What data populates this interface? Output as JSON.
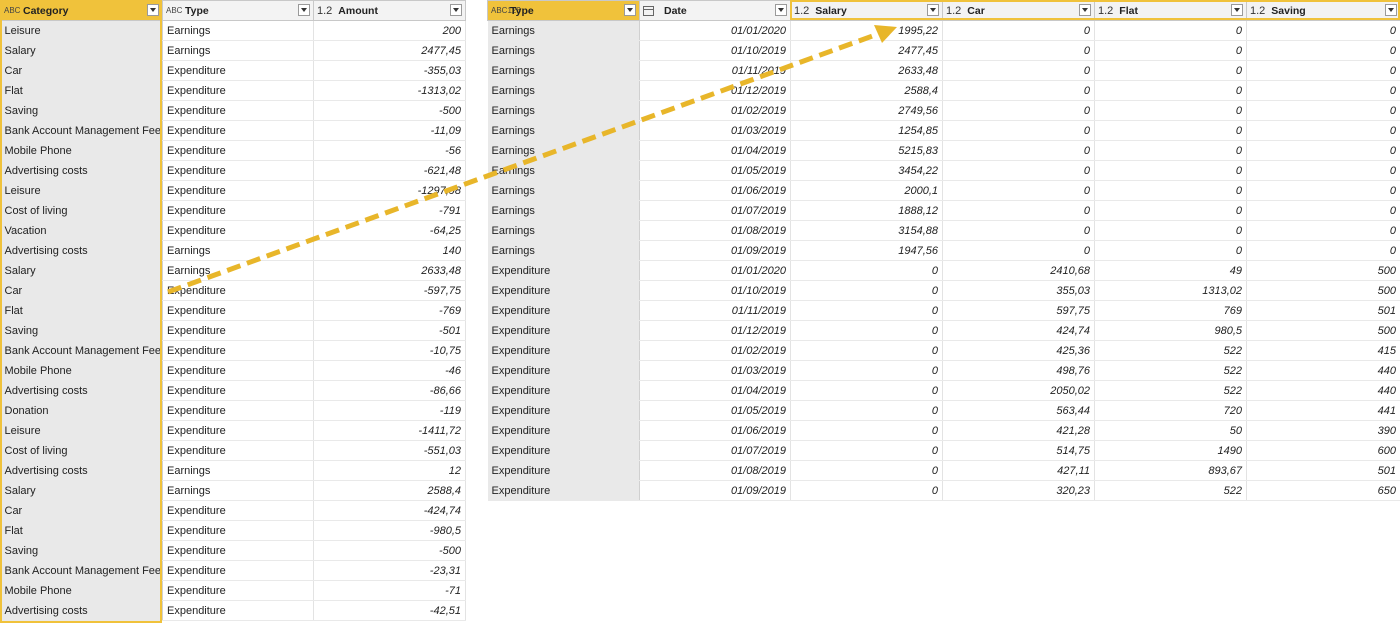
{
  "left_table": {
    "headers": [
      {
        "icon": "ABC",
        "label": "Category"
      },
      {
        "icon": "ABC",
        "label": "Type"
      },
      {
        "icon": "1.2",
        "label": "Amount"
      }
    ],
    "rows": [
      [
        "Leisure",
        "Earnings",
        "200"
      ],
      [
        "Salary",
        "Earnings",
        "2477,45"
      ],
      [
        "Car",
        "Expenditure",
        "-355,03"
      ],
      [
        "Flat",
        "Expenditure",
        "-1313,02"
      ],
      [
        "Saving",
        "Expenditure",
        "-500"
      ],
      [
        "Bank Account Management Fee",
        "Expenditure",
        "-11,09"
      ],
      [
        "Mobile Phone",
        "Expenditure",
        "-56"
      ],
      [
        "Advertising costs",
        "Expenditure",
        "-621,48"
      ],
      [
        "Leisure",
        "Expenditure",
        "-1297,98"
      ],
      [
        "Cost of living",
        "Expenditure",
        "-791"
      ],
      [
        "Vacation",
        "Expenditure",
        "-64,25"
      ],
      [
        "Advertising costs",
        "Earnings",
        "140"
      ],
      [
        "Salary",
        "Earnings",
        "2633,48"
      ],
      [
        "Car",
        "Expenditure",
        "-597,75"
      ],
      [
        "Flat",
        "Expenditure",
        "-769"
      ],
      [
        "Saving",
        "Expenditure",
        "-501"
      ],
      [
        "Bank Account Management Fee",
        "Expenditure",
        "-10,75"
      ],
      [
        "Mobile Phone",
        "Expenditure",
        "-46"
      ],
      [
        "Advertising costs",
        "Expenditure",
        "-86,66"
      ],
      [
        "Donation",
        "Expenditure",
        "-119"
      ],
      [
        "Leisure",
        "Expenditure",
        "-1411,72"
      ],
      [
        "Cost of living",
        "Expenditure",
        "-551,03"
      ],
      [
        "Advertising costs",
        "Earnings",
        "12"
      ],
      [
        "Salary",
        "Earnings",
        "2588,4"
      ],
      [
        "Car",
        "Expenditure",
        "-424,74"
      ],
      [
        "Flat",
        "Expenditure",
        "-980,5"
      ],
      [
        "Saving",
        "Expenditure",
        "-500"
      ],
      [
        "Bank Account Management Fee",
        "Expenditure",
        "-23,31"
      ],
      [
        "Mobile Phone",
        "Expenditure",
        "-71"
      ],
      [
        "Advertising costs",
        "Expenditure",
        "-42,51"
      ]
    ]
  },
  "right_table": {
    "headers": [
      {
        "icon": "ABC123",
        "label": "Type"
      },
      {
        "icon": "calendar-icon",
        "label": "Date"
      },
      {
        "icon": "1.2",
        "label": "Salary"
      },
      {
        "icon": "1.2",
        "label": "Car"
      },
      {
        "icon": "1.2",
        "label": "Flat"
      },
      {
        "icon": "1.2",
        "label": "Saving"
      }
    ],
    "rows": [
      [
        "Earnings",
        "01/01/2020",
        "1995,22",
        "0",
        "0",
        "0"
      ],
      [
        "Earnings",
        "01/10/2019",
        "2477,45",
        "0",
        "0",
        "0"
      ],
      [
        "Earnings",
        "01/11/2019",
        "2633,48",
        "0",
        "0",
        "0"
      ],
      [
        "Earnings",
        "01/12/2019",
        "2588,4",
        "0",
        "0",
        "0"
      ],
      [
        "Earnings",
        "01/02/2019",
        "2749,56",
        "0",
        "0",
        "0"
      ],
      [
        "Earnings",
        "01/03/2019",
        "1254,85",
        "0",
        "0",
        "0"
      ],
      [
        "Earnings",
        "01/04/2019",
        "5215,83",
        "0",
        "0",
        "0"
      ],
      [
        "Earnings",
        "01/05/2019",
        "3454,22",
        "0",
        "0",
        "0"
      ],
      [
        "Earnings",
        "01/06/2019",
        "2000,1",
        "0",
        "0",
        "0"
      ],
      [
        "Earnings",
        "01/07/2019",
        "1888,12",
        "0",
        "0",
        "0"
      ],
      [
        "Earnings",
        "01/08/2019",
        "3154,88",
        "0",
        "0",
        "0"
      ],
      [
        "Earnings",
        "01/09/2019",
        "1947,56",
        "0",
        "0",
        "0"
      ],
      [
        "Expenditure",
        "01/01/2020",
        "0",
        "2410,68",
        "49",
        "500"
      ],
      [
        "Expenditure",
        "01/10/2019",
        "0",
        "355,03",
        "1313,02",
        "500"
      ],
      [
        "Expenditure",
        "01/11/2019",
        "0",
        "597,75",
        "769",
        "501"
      ],
      [
        "Expenditure",
        "01/12/2019",
        "0",
        "424,74",
        "980,5",
        "500"
      ],
      [
        "Expenditure",
        "01/02/2019",
        "0",
        "425,36",
        "522",
        "415"
      ],
      [
        "Expenditure",
        "01/03/2019",
        "0",
        "498,76",
        "522",
        "440"
      ],
      [
        "Expenditure",
        "01/04/2019",
        "0",
        "2050,02",
        "522",
        "440"
      ],
      [
        "Expenditure",
        "01/05/2019",
        "0",
        "563,44",
        "720",
        "441"
      ],
      [
        "Expenditure",
        "01/06/2019",
        "0",
        "421,28",
        "50",
        "390"
      ],
      [
        "Expenditure",
        "01/07/2019",
        "0",
        "514,75",
        "1490",
        "600"
      ],
      [
        "Expenditure",
        "01/08/2019",
        "0",
        "427,11",
        "893,67",
        "501"
      ],
      [
        "Expenditure",
        "01/09/2019",
        "0",
        "320,23",
        "522",
        "650"
      ]
    ]
  },
  "colors": {
    "highlight": "#f0c23b",
    "arrow": "#e8b62a",
    "first_column_bg": "#e9e9e9",
    "header_bg": "#f3f3f3"
  }
}
